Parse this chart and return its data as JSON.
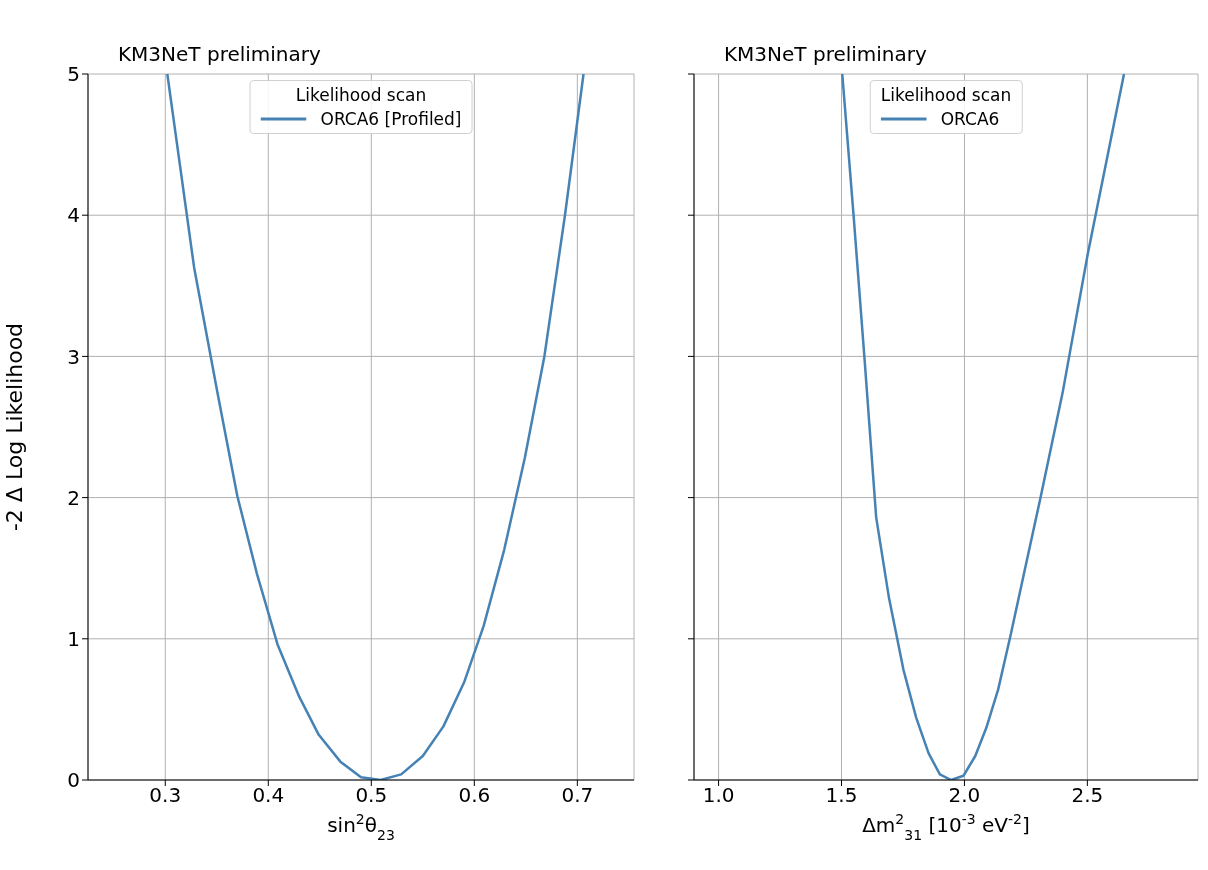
{
  "chart_data": [
    {
      "type": "line",
      "title": "KM3NeT preliminary",
      "xlabel": "sin$^{2}$θ$_{23}$",
      "ylabel": "-2 Δ Log Likelihood",
      "legend_title": "Likelihood scan",
      "x": [
        0.302,
        0.328,
        0.351,
        0.37,
        0.389,
        0.409,
        0.43,
        0.449,
        0.47,
        0.49,
        0.509,
        0.529,
        0.55,
        0.57,
        0.59,
        0.609,
        0.629,
        0.649,
        0.668,
        0.688,
        0.706
      ],
      "series": [
        {
          "name": "ORCA6 [Profiled]",
          "color": "#4682b4",
          "values": [
            5.0,
            3.63,
            2.73,
            2.01,
            1.46,
            0.96,
            0.59,
            0.32,
            0.13,
            0.02,
            0.0,
            0.04,
            0.17,
            0.38,
            0.69,
            1.09,
            1.63,
            2.28,
            3.0,
            4.0,
            5.0
          ]
        }
      ],
      "xlim": [
        0.225,
        0.755
      ],
      "ylim": [
        0,
        5
      ],
      "xticks": [
        0.3,
        0.4,
        0.5,
        0.6,
        0.7
      ],
      "yticks": [
        0,
        1,
        2,
        3,
        4,
        5
      ],
      "grid": true,
      "legend": "top"
    },
    {
      "type": "line",
      "title": "KM3NeT preliminary",
      "xlabel": "Δm$^{2}$$_{31}$ [10$^{-3}$ eV$^{-2}$]",
      "legend_title": "Likelihood scan",
      "x": [
        1.503,
        1.549,
        1.595,
        1.641,
        1.693,
        1.752,
        1.804,
        1.854,
        1.9,
        1.946,
        1.996,
        2.044,
        2.089,
        2.137,
        2.187,
        2.242,
        2.307,
        2.399,
        2.501,
        2.649
      ],
      "series": [
        {
          "name": "ORCA6",
          "color": "#4682b4",
          "values": [
            5.0,
            4.0,
            2.95,
            1.86,
            1.29,
            0.78,
            0.44,
            0.19,
            0.04,
            0.0,
            0.03,
            0.17,
            0.37,
            0.64,
            1.02,
            1.46,
            1.98,
            2.74,
            3.72,
            5.0
          ]
        }
      ],
      "xlim": [
        0.9,
        2.95
      ],
      "ylim": [
        0,
        5
      ],
      "xticks": [
        {
          "value": 1,
          "label": "1.0"
        },
        {
          "value": 1.5,
          "label": "1.5"
        },
        {
          "value": 2,
          "label": "2.0"
        },
        {
          "value": 2.5,
          "label": "2.5"
        }
      ],
      "yticks": [
        0,
        1,
        2,
        3,
        4,
        5
      ],
      "grid": true,
      "legend": "top",
      "tick_labels": "x"
    }
  ]
}
